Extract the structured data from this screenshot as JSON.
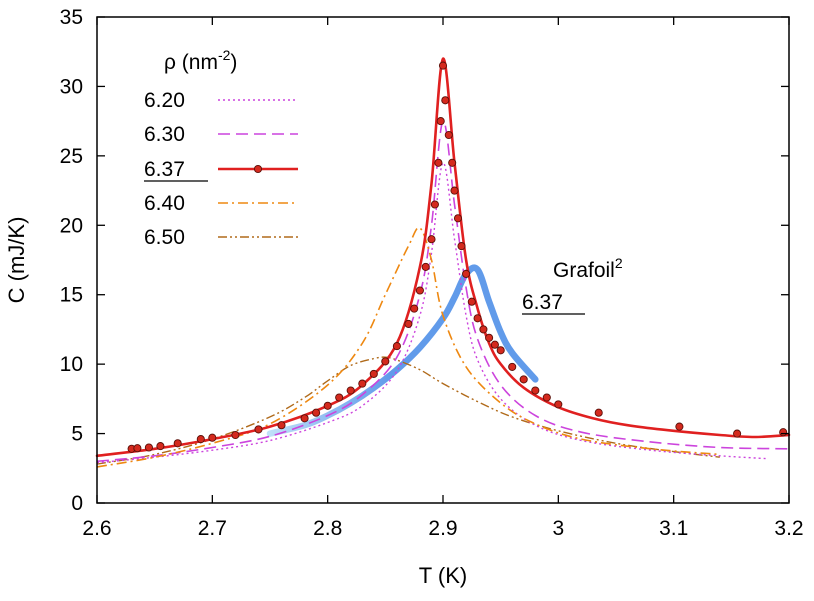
{
  "chart_data": {
    "type": "line",
    "xlabel": "T (K)",
    "ylabel": "C (mJ/K)",
    "xlim": [
      2.6,
      3.2
    ],
    "ylim": [
      0,
      35
    ],
    "xticks": [
      2.6,
      2.7,
      2.8,
      2.9,
      3.0,
      3.1,
      3.2
    ],
    "xtick_labels": [
      "2.6",
      "2.7",
      "2.8",
      "2.9",
      "3",
      "3.1",
      "3.2"
    ],
    "yticks": [
      0,
      5,
      10,
      15,
      20,
      25,
      30,
      35
    ],
    "ytick_labels": [
      "0",
      "5",
      "10",
      "15",
      "20",
      "25",
      "30",
      "35"
    ],
    "legend_title": "ρ (nm",
    "legend_title_exp": "-2",
    "legend_title_end": ")",
    "grid": false,
    "series": [
      {
        "name": "6.20",
        "style": "dotted",
        "color": "#cc44dd",
        "width": 1.4,
        "underline": false,
        "x": [
          2.6,
          2.65,
          2.7,
          2.75,
          2.8,
          2.83,
          2.86,
          2.88,
          2.89,
          2.9,
          2.91,
          2.92,
          2.93,
          2.95,
          2.98,
          3.02,
          3.08,
          3.14,
          3.18
        ],
        "y": [
          2.9,
          3.3,
          3.8,
          4.5,
          5.8,
          7.0,
          9.5,
          13.5,
          18.0,
          24.5,
          19.0,
          13.5,
          10.3,
          7.5,
          5.6,
          4.5,
          3.8,
          3.4,
          3.2
        ]
      },
      {
        "name": "6.30",
        "style": "dashed",
        "color": "#cc44dd",
        "width": 1.6,
        "underline": false,
        "x": [
          2.6,
          2.65,
          2.7,
          2.75,
          2.8,
          2.83,
          2.86,
          2.88,
          2.89,
          2.9,
          2.91,
          2.92,
          2.93,
          2.95,
          2.98,
          3.02,
          3.08,
          3.14,
          3.2
        ],
        "y": [
          3.0,
          3.4,
          4.0,
          4.8,
          6.3,
          7.8,
          10.5,
          15.0,
          20.0,
          27.5,
          21.5,
          15.5,
          11.8,
          8.5,
          6.3,
          5.1,
          4.4,
          4.0,
          3.9
        ]
      },
      {
        "name": "6.37",
        "style": "solid-markers",
        "color": "#e02020",
        "width": 2.6,
        "underline": true,
        "x": [
          2.6,
          2.65,
          2.7,
          2.75,
          2.8,
          2.83,
          2.86,
          2.88,
          2.89,
          2.9,
          2.91,
          2.92,
          2.93,
          2.94,
          2.95,
          2.97,
          3.0,
          3.03,
          3.06,
          3.1,
          3.14,
          3.17,
          3.2
        ],
        "y": [
          3.4,
          3.9,
          4.6,
          5.5,
          7.0,
          8.5,
          11.5,
          17.0,
          23.0,
          32.0,
          24.5,
          17.5,
          14.0,
          11.5,
          10.0,
          8.3,
          6.9,
          6.1,
          5.6,
          5.2,
          4.9,
          4.75,
          4.9
        ]
      },
      {
        "name": "6.40",
        "style": "dashdot",
        "color": "#ee8811",
        "width": 1.6,
        "underline": false,
        "x": [
          2.6,
          2.65,
          2.7,
          2.75,
          2.8,
          2.83,
          2.85,
          2.87,
          2.88,
          2.89,
          2.9,
          2.92,
          2.95,
          2.98,
          3.02,
          3.08,
          3.14
        ],
        "y": [
          2.6,
          3.3,
          4.3,
          5.7,
          8.5,
          11.5,
          15.0,
          18.5,
          19.8,
          17.5,
          13.5,
          9.8,
          7.2,
          5.7,
          4.6,
          3.9,
          3.5
        ]
      },
      {
        "name": "6.50",
        "style": "dashdotdot",
        "color": "#b06a1a",
        "width": 1.4,
        "underline": false,
        "x": [
          2.6,
          2.65,
          2.7,
          2.75,
          2.78,
          2.8,
          2.82,
          2.84,
          2.85,
          2.86,
          2.88,
          2.9,
          2.93,
          2.96,
          3.0,
          3.05,
          3.1,
          3.14
        ],
        "y": [
          2.8,
          3.5,
          4.6,
          6.2,
          7.6,
          8.8,
          9.9,
          10.4,
          10.5,
          10.3,
          9.6,
          8.6,
          7.3,
          6.2,
          5.2,
          4.3,
          3.7,
          3.3
        ]
      },
      {
        "name": "6.37",
        "style": "thick",
        "color": "#5090e8",
        "width": 6.5,
        "underline": true,
        "x": [
          2.75,
          2.78,
          2.8,
          2.82,
          2.84,
          2.86,
          2.88,
          2.9,
          2.91,
          2.92,
          2.93,
          2.94,
          2.95,
          2.96,
          2.98
        ],
        "y": [
          5.0,
          5.6,
          6.3,
          7.2,
          8.3,
          9.6,
          11.2,
          13.3,
          14.8,
          16.5,
          16.8,
          14.5,
          12.3,
          10.8,
          8.9
        ]
      }
    ],
    "markers_6_37": {
      "x": [
        2.63,
        2.635,
        2.645,
        2.655,
        2.67,
        2.69,
        2.7,
        2.72,
        2.74,
        2.76,
        2.78,
        2.79,
        2.8,
        2.81,
        2.82,
        2.83,
        2.84,
        2.85,
        2.86,
        2.87,
        2.875,
        2.88,
        2.885,
        2.89,
        2.893,
        2.896,
        2.898,
        2.9,
        2.902,
        2.905,
        2.908,
        2.91,
        2.913,
        2.916,
        2.92,
        2.925,
        2.93,
        2.935,
        2.94,
        2.945,
        2.95,
        2.96,
        2.97,
        2.98,
        2.99,
        3.0,
        3.035,
        3.105,
        3.155,
        3.195
      ],
      "y": [
        3.9,
        3.95,
        4.0,
        4.1,
        4.3,
        4.6,
        4.7,
        4.9,
        5.3,
        5.6,
        6.1,
        6.5,
        7.0,
        7.6,
        8.1,
        8.6,
        9.3,
        10.2,
        11.3,
        12.9,
        14.0,
        15.3,
        17.0,
        19.0,
        21.5,
        24.5,
        27.5,
        31.5,
        29.0,
        26.5,
        24.5,
        22.5,
        20.5,
        18.5,
        16.5,
        14.5,
        13.3,
        12.5,
        11.9,
        11.4,
        11.0,
        9.8,
        8.9,
        8.1,
        7.6,
        7.1,
        6.5,
        5.5,
        5.0,
        5.1
      ]
    },
    "legend_annotation": {
      "label": "Grafoil",
      "superscript": "2",
      "entry": "6.37"
    }
  }
}
